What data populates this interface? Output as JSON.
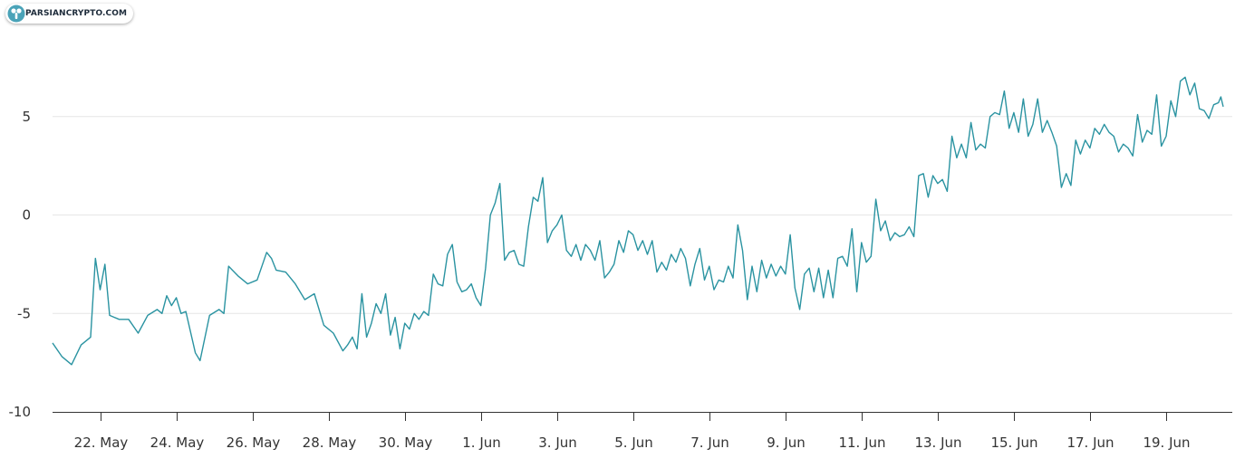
{
  "watermark": {
    "text": "PARSIANCRYPTO.COM",
    "icon": "parsiancrypto-logo-icon"
  },
  "colors": {
    "line": "#2a93a1",
    "grid": "#e6e6e6",
    "axis": "#333333",
    "brand": "#4aa3b8"
  },
  "chart_data": {
    "type": "line",
    "title": "",
    "xlabel": "",
    "ylabel": "",
    "ylim": [
      -10,
      10
    ],
    "yticks": [
      -10,
      -5,
      0,
      5
    ],
    "ytick_labels": [
      "-10",
      "-5",
      "0",
      "5"
    ],
    "xlim": [
      "2019-05-20T18:00",
      "2019-06-20T12:00"
    ],
    "xticks": [
      "2019-05-22",
      "2019-05-24",
      "2019-05-26",
      "2019-05-28",
      "2019-05-30",
      "2019-06-01",
      "2019-06-03",
      "2019-06-05",
      "2019-06-07",
      "2019-06-09",
      "2019-06-11",
      "2019-06-13",
      "2019-06-15",
      "2019-06-17",
      "2019-06-19"
    ],
    "xtick_labels": [
      "22. May",
      "24. May",
      "26. May",
      "28. May",
      "30. May",
      "1. Jun",
      "3. Jun",
      "5. Jun",
      "7. Jun",
      "9. Jun",
      "11. Jun",
      "13. Jun",
      "15. Jun",
      "17. Jun",
      "19. Jun"
    ],
    "grid": true,
    "legend": "none",
    "series": [
      {
        "points": [
          [
            "2019-05-20T18:00",
            -6.5
          ],
          [
            "2019-05-21T00:00",
            -7.2
          ],
          [
            "2019-05-21T06:00",
            -7.6
          ],
          [
            "2019-05-21T12:00",
            -6.6
          ],
          [
            "2019-05-21T18:00",
            -6.2
          ],
          [
            "2019-05-21T21:00",
            -2.2
          ],
          [
            "2019-05-22T00:00",
            -3.8
          ],
          [
            "2019-05-22T03:00",
            -2.5
          ],
          [
            "2019-05-22T06:00",
            -5.1
          ],
          [
            "2019-05-22T12:00",
            -5.3
          ],
          [
            "2019-05-22T18:00",
            -5.3
          ],
          [
            "2019-05-23T00:00",
            -6.0
          ],
          [
            "2019-05-23T06:00",
            -5.1
          ],
          [
            "2019-05-23T12:00",
            -4.8
          ],
          [
            "2019-05-23T15:00",
            -5.0
          ],
          [
            "2019-05-23T18:00",
            -4.1
          ],
          [
            "2019-05-23T21:00",
            -4.6
          ],
          [
            "2019-05-24T00:00",
            -4.2
          ],
          [
            "2019-05-24T03:00",
            -5.0
          ],
          [
            "2019-05-24T06:00",
            -4.9
          ],
          [
            "2019-05-24T12:00",
            -7.0
          ],
          [
            "2019-05-24T15:00",
            -7.4
          ],
          [
            "2019-05-24T21:00",
            -5.1
          ],
          [
            "2019-05-25T03:00",
            -4.8
          ],
          [
            "2019-05-25T06:00",
            -5.0
          ],
          [
            "2019-05-25T09:00",
            -2.6
          ],
          [
            "2019-05-25T15:00",
            -3.1
          ],
          [
            "2019-05-25T21:00",
            -3.5
          ],
          [
            "2019-05-26T03:00",
            -3.3
          ],
          [
            "2019-05-26T09:00",
            -1.9
          ],
          [
            "2019-05-26T12:00",
            -2.2
          ],
          [
            "2019-05-26T15:00",
            -2.8
          ],
          [
            "2019-05-26T21:00",
            -2.9
          ],
          [
            "2019-05-27T03:00",
            -3.5
          ],
          [
            "2019-05-27T09:00",
            -4.3
          ],
          [
            "2019-05-27T15:00",
            -4.0
          ],
          [
            "2019-05-27T21:00",
            -5.6
          ],
          [
            "2019-05-28T03:00",
            -6.0
          ],
          [
            "2019-05-28T09:00",
            -6.9
          ],
          [
            "2019-05-28T12:00",
            -6.6
          ],
          [
            "2019-05-28T15:00",
            -6.2
          ],
          [
            "2019-05-28T18:00",
            -6.8
          ],
          [
            "2019-05-28T21:00",
            -4.0
          ],
          [
            "2019-05-29T00:00",
            -6.2
          ],
          [
            "2019-05-29T03:00",
            -5.5
          ],
          [
            "2019-05-29T06:00",
            -4.5
          ],
          [
            "2019-05-29T09:00",
            -5.0
          ],
          [
            "2019-05-29T12:00",
            -4.0
          ],
          [
            "2019-05-29T15:00",
            -6.1
          ],
          [
            "2019-05-29T18:00",
            -5.2
          ],
          [
            "2019-05-29T21:00",
            -6.8
          ],
          [
            "2019-05-30T00:00",
            -5.5
          ],
          [
            "2019-05-30T03:00",
            -5.8
          ],
          [
            "2019-05-30T06:00",
            -5.0
          ],
          [
            "2019-05-30T09:00",
            -5.3
          ],
          [
            "2019-05-30T12:00",
            -4.9
          ],
          [
            "2019-05-30T15:00",
            -5.1
          ],
          [
            "2019-05-30T18:00",
            -3.0
          ],
          [
            "2019-05-30T21:00",
            -3.5
          ],
          [
            "2019-05-31T00:00",
            -3.6
          ],
          [
            "2019-05-31T03:00",
            -2.0
          ],
          [
            "2019-05-31T06:00",
            -1.5
          ],
          [
            "2019-05-31T09:00",
            -3.4
          ],
          [
            "2019-05-31T12:00",
            -3.9
          ],
          [
            "2019-05-31T15:00",
            -3.8
          ],
          [
            "2019-05-31T18:00",
            -3.5
          ],
          [
            "2019-05-31T21:00",
            -4.2
          ],
          [
            "2019-06-01T00:00",
            -4.6
          ],
          [
            "2019-06-01T03:00",
            -2.7
          ],
          [
            "2019-06-01T06:00",
            0.0
          ],
          [
            "2019-06-01T09:00",
            0.6
          ],
          [
            "2019-06-01T12:00",
            1.6
          ],
          [
            "2019-06-01T15:00",
            -2.3
          ],
          [
            "2019-06-01T18:00",
            -1.9
          ],
          [
            "2019-06-01T21:00",
            -1.8
          ],
          [
            "2019-06-02T00:00",
            -2.5
          ],
          [
            "2019-06-02T03:00",
            -2.6
          ],
          [
            "2019-06-02T06:00",
            -0.6
          ],
          [
            "2019-06-02T09:00",
            0.9
          ],
          [
            "2019-06-02T12:00",
            0.7
          ],
          [
            "2019-06-02T15:00",
            1.9
          ],
          [
            "2019-06-02T18:00",
            -1.4
          ],
          [
            "2019-06-02T21:00",
            -0.8
          ],
          [
            "2019-06-03T00:00",
            -0.5
          ],
          [
            "2019-06-03T03:00",
            0.0
          ],
          [
            "2019-06-03T06:00",
            -1.8
          ],
          [
            "2019-06-03T09:00",
            -2.1
          ],
          [
            "2019-06-03T12:00",
            -1.5
          ],
          [
            "2019-06-03T15:00",
            -2.3
          ],
          [
            "2019-06-03T18:00",
            -1.5
          ],
          [
            "2019-06-03T21:00",
            -1.8
          ],
          [
            "2019-06-04T00:00",
            -2.3
          ],
          [
            "2019-06-04T03:00",
            -1.3
          ],
          [
            "2019-06-04T06:00",
            -3.2
          ],
          [
            "2019-06-04T09:00",
            -2.9
          ],
          [
            "2019-06-04T12:00",
            -2.5
          ],
          [
            "2019-06-04T15:00",
            -1.3
          ],
          [
            "2019-06-04T18:00",
            -1.9
          ],
          [
            "2019-06-04T21:00",
            -0.8
          ],
          [
            "2019-06-05T00:00",
            -1.0
          ],
          [
            "2019-06-05T03:00",
            -1.8
          ],
          [
            "2019-06-05T06:00",
            -1.3
          ],
          [
            "2019-06-05T09:00",
            -2.0
          ],
          [
            "2019-06-05T12:00",
            -1.3
          ],
          [
            "2019-06-05T15:00",
            -2.9
          ],
          [
            "2019-06-05T18:00",
            -2.4
          ],
          [
            "2019-06-05T21:00",
            -2.8
          ],
          [
            "2019-06-06T00:00",
            -2.0
          ],
          [
            "2019-06-06T03:00",
            -2.4
          ],
          [
            "2019-06-06T06:00",
            -1.7
          ],
          [
            "2019-06-06T09:00",
            -2.2
          ],
          [
            "2019-06-06T12:00",
            -3.6
          ],
          [
            "2019-06-06T15:00",
            -2.5
          ],
          [
            "2019-06-06T18:00",
            -1.7
          ],
          [
            "2019-06-06T21:00",
            -3.3
          ],
          [
            "2019-06-07T00:00",
            -2.6
          ],
          [
            "2019-06-07T03:00",
            -3.8
          ],
          [
            "2019-06-07T06:00",
            -3.3
          ],
          [
            "2019-06-07T09:00",
            -3.4
          ],
          [
            "2019-06-07T12:00",
            -2.6
          ],
          [
            "2019-06-07T15:00",
            -3.2
          ],
          [
            "2019-06-07T18:00",
            -0.5
          ],
          [
            "2019-06-07T21:00",
            -1.8
          ],
          [
            "2019-06-08T00:00",
            -4.3
          ],
          [
            "2019-06-08T03:00",
            -2.6
          ],
          [
            "2019-06-08T06:00",
            -3.9
          ],
          [
            "2019-06-08T09:00",
            -2.3
          ],
          [
            "2019-06-08T12:00",
            -3.2
          ],
          [
            "2019-06-08T15:00",
            -2.5
          ],
          [
            "2019-06-08T18:00",
            -3.1
          ],
          [
            "2019-06-08T21:00",
            -2.6
          ],
          [
            "2019-06-09T00:00",
            -3.0
          ],
          [
            "2019-06-09T03:00",
            -1.0
          ],
          [
            "2019-06-09T06:00",
            -3.7
          ],
          [
            "2019-06-09T09:00",
            -4.8
          ],
          [
            "2019-06-09T12:00",
            -3.0
          ],
          [
            "2019-06-09T15:00",
            -2.7
          ],
          [
            "2019-06-09T18:00",
            -3.9
          ],
          [
            "2019-06-09T21:00",
            -2.7
          ],
          [
            "2019-06-10T00:00",
            -4.2
          ],
          [
            "2019-06-10T03:00",
            -2.8
          ],
          [
            "2019-06-10T06:00",
            -4.2
          ],
          [
            "2019-06-10T09:00",
            -2.2
          ],
          [
            "2019-06-10T12:00",
            -2.1
          ],
          [
            "2019-06-10T15:00",
            -2.6
          ],
          [
            "2019-06-10T18:00",
            -0.7
          ],
          [
            "2019-06-10T21:00",
            -3.9
          ],
          [
            "2019-06-11T00:00",
            -1.4
          ],
          [
            "2019-06-11T03:00",
            -2.4
          ],
          [
            "2019-06-11T06:00",
            -2.1
          ],
          [
            "2019-06-11T09:00",
            0.8
          ],
          [
            "2019-06-11T12:00",
            -0.8
          ],
          [
            "2019-06-11T15:00",
            -0.3
          ],
          [
            "2019-06-11T18:00",
            -1.3
          ],
          [
            "2019-06-11T21:00",
            -0.9
          ],
          [
            "2019-06-12T00:00",
            -1.1
          ],
          [
            "2019-06-12T03:00",
            -1.0
          ],
          [
            "2019-06-12T06:00",
            -0.6
          ],
          [
            "2019-06-12T09:00",
            -1.1
          ],
          [
            "2019-06-12T12:00",
            2.0
          ],
          [
            "2019-06-12T15:00",
            2.1
          ],
          [
            "2019-06-12T18:00",
            0.9
          ],
          [
            "2019-06-12T21:00",
            2.0
          ],
          [
            "2019-06-13T00:00",
            1.6
          ],
          [
            "2019-06-13T03:00",
            1.8
          ],
          [
            "2019-06-13T06:00",
            1.2
          ],
          [
            "2019-06-13T09:00",
            4.0
          ],
          [
            "2019-06-13T12:00",
            2.9
          ],
          [
            "2019-06-13T15:00",
            3.6
          ],
          [
            "2019-06-13T18:00",
            2.9
          ],
          [
            "2019-06-13T21:00",
            4.7
          ],
          [
            "2019-06-14T00:00",
            3.3
          ],
          [
            "2019-06-14T03:00",
            3.6
          ],
          [
            "2019-06-14T06:00",
            3.4
          ],
          [
            "2019-06-14T09:00",
            5.0
          ],
          [
            "2019-06-14T12:00",
            5.2
          ],
          [
            "2019-06-14T15:00",
            5.1
          ],
          [
            "2019-06-14T18:00",
            6.3
          ],
          [
            "2019-06-14T21:00",
            4.4
          ],
          [
            "2019-06-15T00:00",
            5.2
          ],
          [
            "2019-06-15T03:00",
            4.2
          ],
          [
            "2019-06-15T06:00",
            5.9
          ],
          [
            "2019-06-15T09:00",
            4.0
          ],
          [
            "2019-06-15T12:00",
            4.6
          ],
          [
            "2019-06-15T15:00",
            5.9
          ],
          [
            "2019-06-15T18:00",
            4.2
          ],
          [
            "2019-06-15T21:00",
            4.8
          ],
          [
            "2019-06-16T00:00",
            4.2
          ],
          [
            "2019-06-16T03:00",
            3.5
          ],
          [
            "2019-06-16T06:00",
            1.4
          ],
          [
            "2019-06-16T09:00",
            2.1
          ],
          [
            "2019-06-16T12:00",
            1.5
          ],
          [
            "2019-06-16T15:00",
            3.8
          ],
          [
            "2019-06-16T18:00",
            3.1
          ],
          [
            "2019-06-16T21:00",
            3.8
          ],
          [
            "2019-06-17T00:00",
            3.4
          ],
          [
            "2019-06-17T03:00",
            4.4
          ],
          [
            "2019-06-17T06:00",
            4.1
          ],
          [
            "2019-06-17T09:00",
            4.6
          ],
          [
            "2019-06-17T12:00",
            4.2
          ],
          [
            "2019-06-17T15:00",
            4.0
          ],
          [
            "2019-06-17T18:00",
            3.2
          ],
          [
            "2019-06-17T21:00",
            3.6
          ],
          [
            "2019-06-18T00:00",
            3.4
          ],
          [
            "2019-06-18T03:00",
            3.0
          ],
          [
            "2019-06-18T06:00",
            5.1
          ],
          [
            "2019-06-18T09:00",
            3.7
          ],
          [
            "2019-06-18T12:00",
            4.3
          ],
          [
            "2019-06-18T15:00",
            4.1
          ],
          [
            "2019-06-18T18:00",
            6.1
          ],
          [
            "2019-06-18T21:00",
            3.5
          ],
          [
            "2019-06-19T00:00",
            4.0
          ],
          [
            "2019-06-19T03:00",
            5.8
          ],
          [
            "2019-06-19T06:00",
            5.0
          ],
          [
            "2019-06-19T09:00",
            6.8
          ],
          [
            "2019-06-19T12:00",
            7.0
          ],
          [
            "2019-06-19T15:00",
            6.1
          ],
          [
            "2019-06-19T18:00",
            6.7
          ],
          [
            "2019-06-19T21:00",
            5.4
          ],
          [
            "2019-06-20T00:00",
            5.3
          ],
          [
            "2019-06-20T03:00",
            4.9
          ],
          [
            "2019-06-20T06:00",
            5.6
          ],
          [
            "2019-06-20T09:00",
            5.7
          ],
          [
            "2019-06-20T10:30",
            6.0
          ],
          [
            "2019-06-20T12:00",
            5.5
          ]
        ]
      }
    ]
  }
}
